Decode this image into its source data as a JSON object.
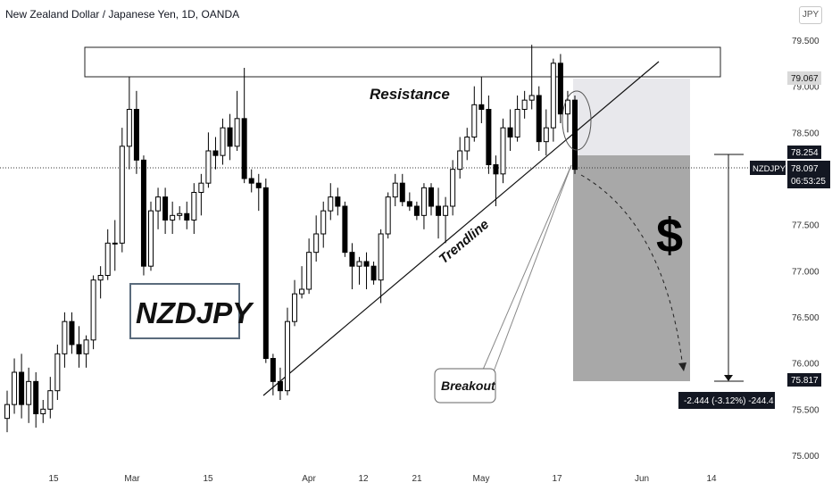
{
  "header": {
    "title": "New Zealand Dollar / Japanese Yen, 1D, OANDA"
  },
  "currency_button": "JPY",
  "colors": {
    "candle": "#000000",
    "background": "#ffffff",
    "stop_zone": "#e8e8ec",
    "target_zone": "#a8a8a8",
    "price_tag": "#131722"
  },
  "chart_data": {
    "type": "candlestick",
    "symbol": "NZDJPY",
    "ylim": [
      74.85,
      79.75
    ],
    "y_ticks": [
      "75.000",
      "75.500",
      "76.000",
      "76.500",
      "77.000",
      "77.500",
      "78.000",
      "78.500",
      "79.000",
      "79.500"
    ],
    "x_ticks": [
      "15",
      "Mar",
      "15",
      "Apr",
      "12",
      "21",
      "May",
      "17",
      "Jun",
      "14"
    ],
    "price_labels": {
      "last_symbol": "NZDJPY",
      "last_price": "78.097",
      "countdown": "06:53:25",
      "top_level": "79.067",
      "entry": "78.254",
      "target": "75.817"
    },
    "measure_label": "-2.444 (-3.12%) -244.4",
    "annotations": {
      "resistance": "Resistance",
      "trendline": "Trendline",
      "breakout": "Breakout",
      "symbol_box": "NZDJPY",
      "dollar": "$"
    },
    "candles": [
      {
        "o": 75.4,
        "h": 75.7,
        "l": 75.25,
        "c": 75.55
      },
      {
        "o": 75.55,
        "h": 76.05,
        "l": 75.45,
        "c": 75.9
      },
      {
        "o": 75.9,
        "h": 76.1,
        "l": 75.4,
        "c": 75.55
      },
      {
        "o": 75.55,
        "h": 75.95,
        "l": 75.35,
        "c": 75.8
      },
      {
        "o": 75.8,
        "h": 75.9,
        "l": 75.3,
        "c": 75.45
      },
      {
        "o": 75.45,
        "h": 75.6,
        "l": 75.35,
        "c": 75.5
      },
      {
        "o": 75.5,
        "h": 75.85,
        "l": 75.4,
        "c": 75.7
      },
      {
        "o": 75.7,
        "h": 76.2,
        "l": 75.6,
        "c": 76.1
      },
      {
        "o": 76.1,
        "h": 76.55,
        "l": 75.95,
        "c": 76.45
      },
      {
        "o": 76.45,
        "h": 76.55,
        "l": 76.1,
        "c": 76.2
      },
      {
        "o": 76.2,
        "h": 76.4,
        "l": 75.95,
        "c": 76.1
      },
      {
        "o": 76.1,
        "h": 76.3,
        "l": 75.95,
        "c": 76.25
      },
      {
        "o": 76.25,
        "h": 76.95,
        "l": 76.15,
        "c": 76.9
      },
      {
        "o": 76.9,
        "h": 77.05,
        "l": 76.7,
        "c": 76.95
      },
      {
        "o": 76.95,
        "h": 77.45,
        "l": 76.9,
        "c": 77.3
      },
      {
        "o": 77.3,
        "h": 77.55,
        "l": 77.0,
        "c": 77.3
      },
      {
        "o": 77.3,
        "h": 78.55,
        "l": 77.2,
        "c": 78.35
      },
      {
        "o": 78.35,
        "h": 79.1,
        "l": 78.1,
        "c": 78.75
      },
      {
        "o": 78.75,
        "h": 78.95,
        "l": 78.05,
        "c": 78.2
      },
      {
        "o": 78.2,
        "h": 78.25,
        "l": 76.95,
        "c": 77.05
      },
      {
        "o": 77.05,
        "h": 77.75,
        "l": 77.0,
        "c": 77.65
      },
      {
        "o": 77.65,
        "h": 77.9,
        "l": 77.45,
        "c": 77.8
      },
      {
        "o": 77.8,
        "h": 77.9,
        "l": 77.4,
        "c": 77.55
      },
      {
        "o": 77.55,
        "h": 77.75,
        "l": 77.4,
        "c": 77.6
      },
      {
        "o": 77.6,
        "h": 77.7,
        "l": 77.55,
        "c": 77.62
      },
      {
        "o": 77.62,
        "h": 77.75,
        "l": 77.45,
        "c": 77.55
      },
      {
        "o": 77.55,
        "h": 77.95,
        "l": 77.4,
        "c": 77.85
      },
      {
        "o": 77.85,
        "h": 78.05,
        "l": 77.6,
        "c": 77.95
      },
      {
        "o": 77.95,
        "h": 78.5,
        "l": 77.9,
        "c": 78.3
      },
      {
        "o": 78.3,
        "h": 78.45,
        "l": 78.1,
        "c": 78.25
      },
      {
        "o": 78.25,
        "h": 78.65,
        "l": 78.15,
        "c": 78.55
      },
      {
        "o": 78.55,
        "h": 78.7,
        "l": 78.2,
        "c": 78.35
      },
      {
        "o": 78.35,
        "h": 78.95,
        "l": 78.3,
        "c": 78.65
      },
      {
        "o": 78.65,
        "h": 79.2,
        "l": 77.95,
        "c": 78.0
      },
      {
        "o": 78.0,
        "h": 78.1,
        "l": 77.85,
        "c": 77.95
      },
      {
        "o": 77.95,
        "h": 78.05,
        "l": 77.65,
        "c": 77.9
      },
      {
        "o": 77.9,
        "h": 78.0,
        "l": 76.0,
        "c": 76.05
      },
      {
        "o": 76.05,
        "h": 76.1,
        "l": 75.65,
        "c": 75.8
      },
      {
        "o": 75.8,
        "h": 75.95,
        "l": 75.6,
        "c": 75.7
      },
      {
        "o": 75.7,
        "h": 76.6,
        "l": 75.65,
        "c": 76.45
      },
      {
        "o": 76.45,
        "h": 76.9,
        "l": 76.4,
        "c": 76.75
      },
      {
        "o": 76.75,
        "h": 77.05,
        "l": 76.7,
        "c": 76.8
      },
      {
        "o": 76.8,
        "h": 77.35,
        "l": 76.75,
        "c": 77.2
      },
      {
        "o": 77.2,
        "h": 77.6,
        "l": 77.1,
        "c": 77.4
      },
      {
        "o": 77.4,
        "h": 77.75,
        "l": 77.25,
        "c": 77.65
      },
      {
        "o": 77.65,
        "h": 77.95,
        "l": 77.55,
        "c": 77.8
      },
      {
        "o": 77.8,
        "h": 77.9,
        "l": 77.6,
        "c": 77.7
      },
      {
        "o": 77.7,
        "h": 77.75,
        "l": 77.15,
        "c": 77.2
      },
      {
        "o": 77.2,
        "h": 77.3,
        "l": 76.8,
        "c": 77.05
      },
      {
        "o": 77.05,
        "h": 77.15,
        "l": 76.85,
        "c": 77.1
      },
      {
        "o": 77.1,
        "h": 77.2,
        "l": 76.8,
        "c": 77.05
      },
      {
        "o": 77.05,
        "h": 77.1,
        "l": 76.85,
        "c": 76.9
      },
      {
        "o": 76.9,
        "h": 77.45,
        "l": 76.65,
        "c": 77.4
      },
      {
        "o": 77.4,
        "h": 77.85,
        "l": 77.35,
        "c": 77.8
      },
      {
        "o": 77.8,
        "h": 78.05,
        "l": 77.7,
        "c": 77.95
      },
      {
        "o": 77.95,
        "h": 78.05,
        "l": 77.7,
        "c": 77.75
      },
      {
        "o": 77.75,
        "h": 77.85,
        "l": 77.65,
        "c": 77.7
      },
      {
        "o": 77.7,
        "h": 77.75,
        "l": 77.55,
        "c": 77.6
      },
      {
        "o": 77.6,
        "h": 77.95,
        "l": 77.45,
        "c": 77.9
      },
      {
        "o": 77.9,
        "h": 77.95,
        "l": 77.6,
        "c": 77.7
      },
      {
        "o": 77.7,
        "h": 77.9,
        "l": 77.35,
        "c": 77.6
      },
      {
        "o": 77.6,
        "h": 77.8,
        "l": 77.3,
        "c": 77.7
      },
      {
        "o": 77.7,
        "h": 78.2,
        "l": 77.6,
        "c": 78.1
      },
      {
        "o": 78.1,
        "h": 78.45,
        "l": 78.0,
        "c": 78.3
      },
      {
        "o": 78.3,
        "h": 78.55,
        "l": 78.2,
        "c": 78.45
      },
      {
        "o": 78.45,
        "h": 79.0,
        "l": 78.4,
        "c": 78.8
      },
      {
        "o": 78.8,
        "h": 79.1,
        "l": 78.6,
        "c": 78.75
      },
      {
        "o": 78.75,
        "h": 78.9,
        "l": 78.05,
        "c": 78.15
      },
      {
        "o": 78.15,
        "h": 78.25,
        "l": 77.7,
        "c": 78.05
      },
      {
        "o": 78.05,
        "h": 78.65,
        "l": 77.95,
        "c": 78.55
      },
      {
        "o": 78.55,
        "h": 78.75,
        "l": 78.3,
        "c": 78.45
      },
      {
        "o": 78.45,
        "h": 78.9,
        "l": 78.4,
        "c": 78.75
      },
      {
        "o": 78.75,
        "h": 78.95,
        "l": 78.65,
        "c": 78.85
      },
      {
        "o": 78.85,
        "h": 79.45,
        "l": 78.75,
        "c": 78.9
      },
      {
        "o": 78.9,
        "h": 79.0,
        "l": 78.3,
        "c": 78.4
      },
      {
        "o": 78.4,
        "h": 78.75,
        "l": 78.25,
        "c": 78.55
      },
      {
        "o": 78.55,
        "h": 79.3,
        "l": 78.4,
        "c": 79.25
      },
      {
        "o": 79.25,
        "h": 79.35,
        "l": 78.6,
        "c": 78.7
      },
      {
        "o": 78.7,
        "h": 78.95,
        "l": 78.5,
        "c": 78.85
      },
      {
        "o": 78.85,
        "h": 78.9,
        "l": 78.05,
        "c": 78.1
      }
    ]
  }
}
